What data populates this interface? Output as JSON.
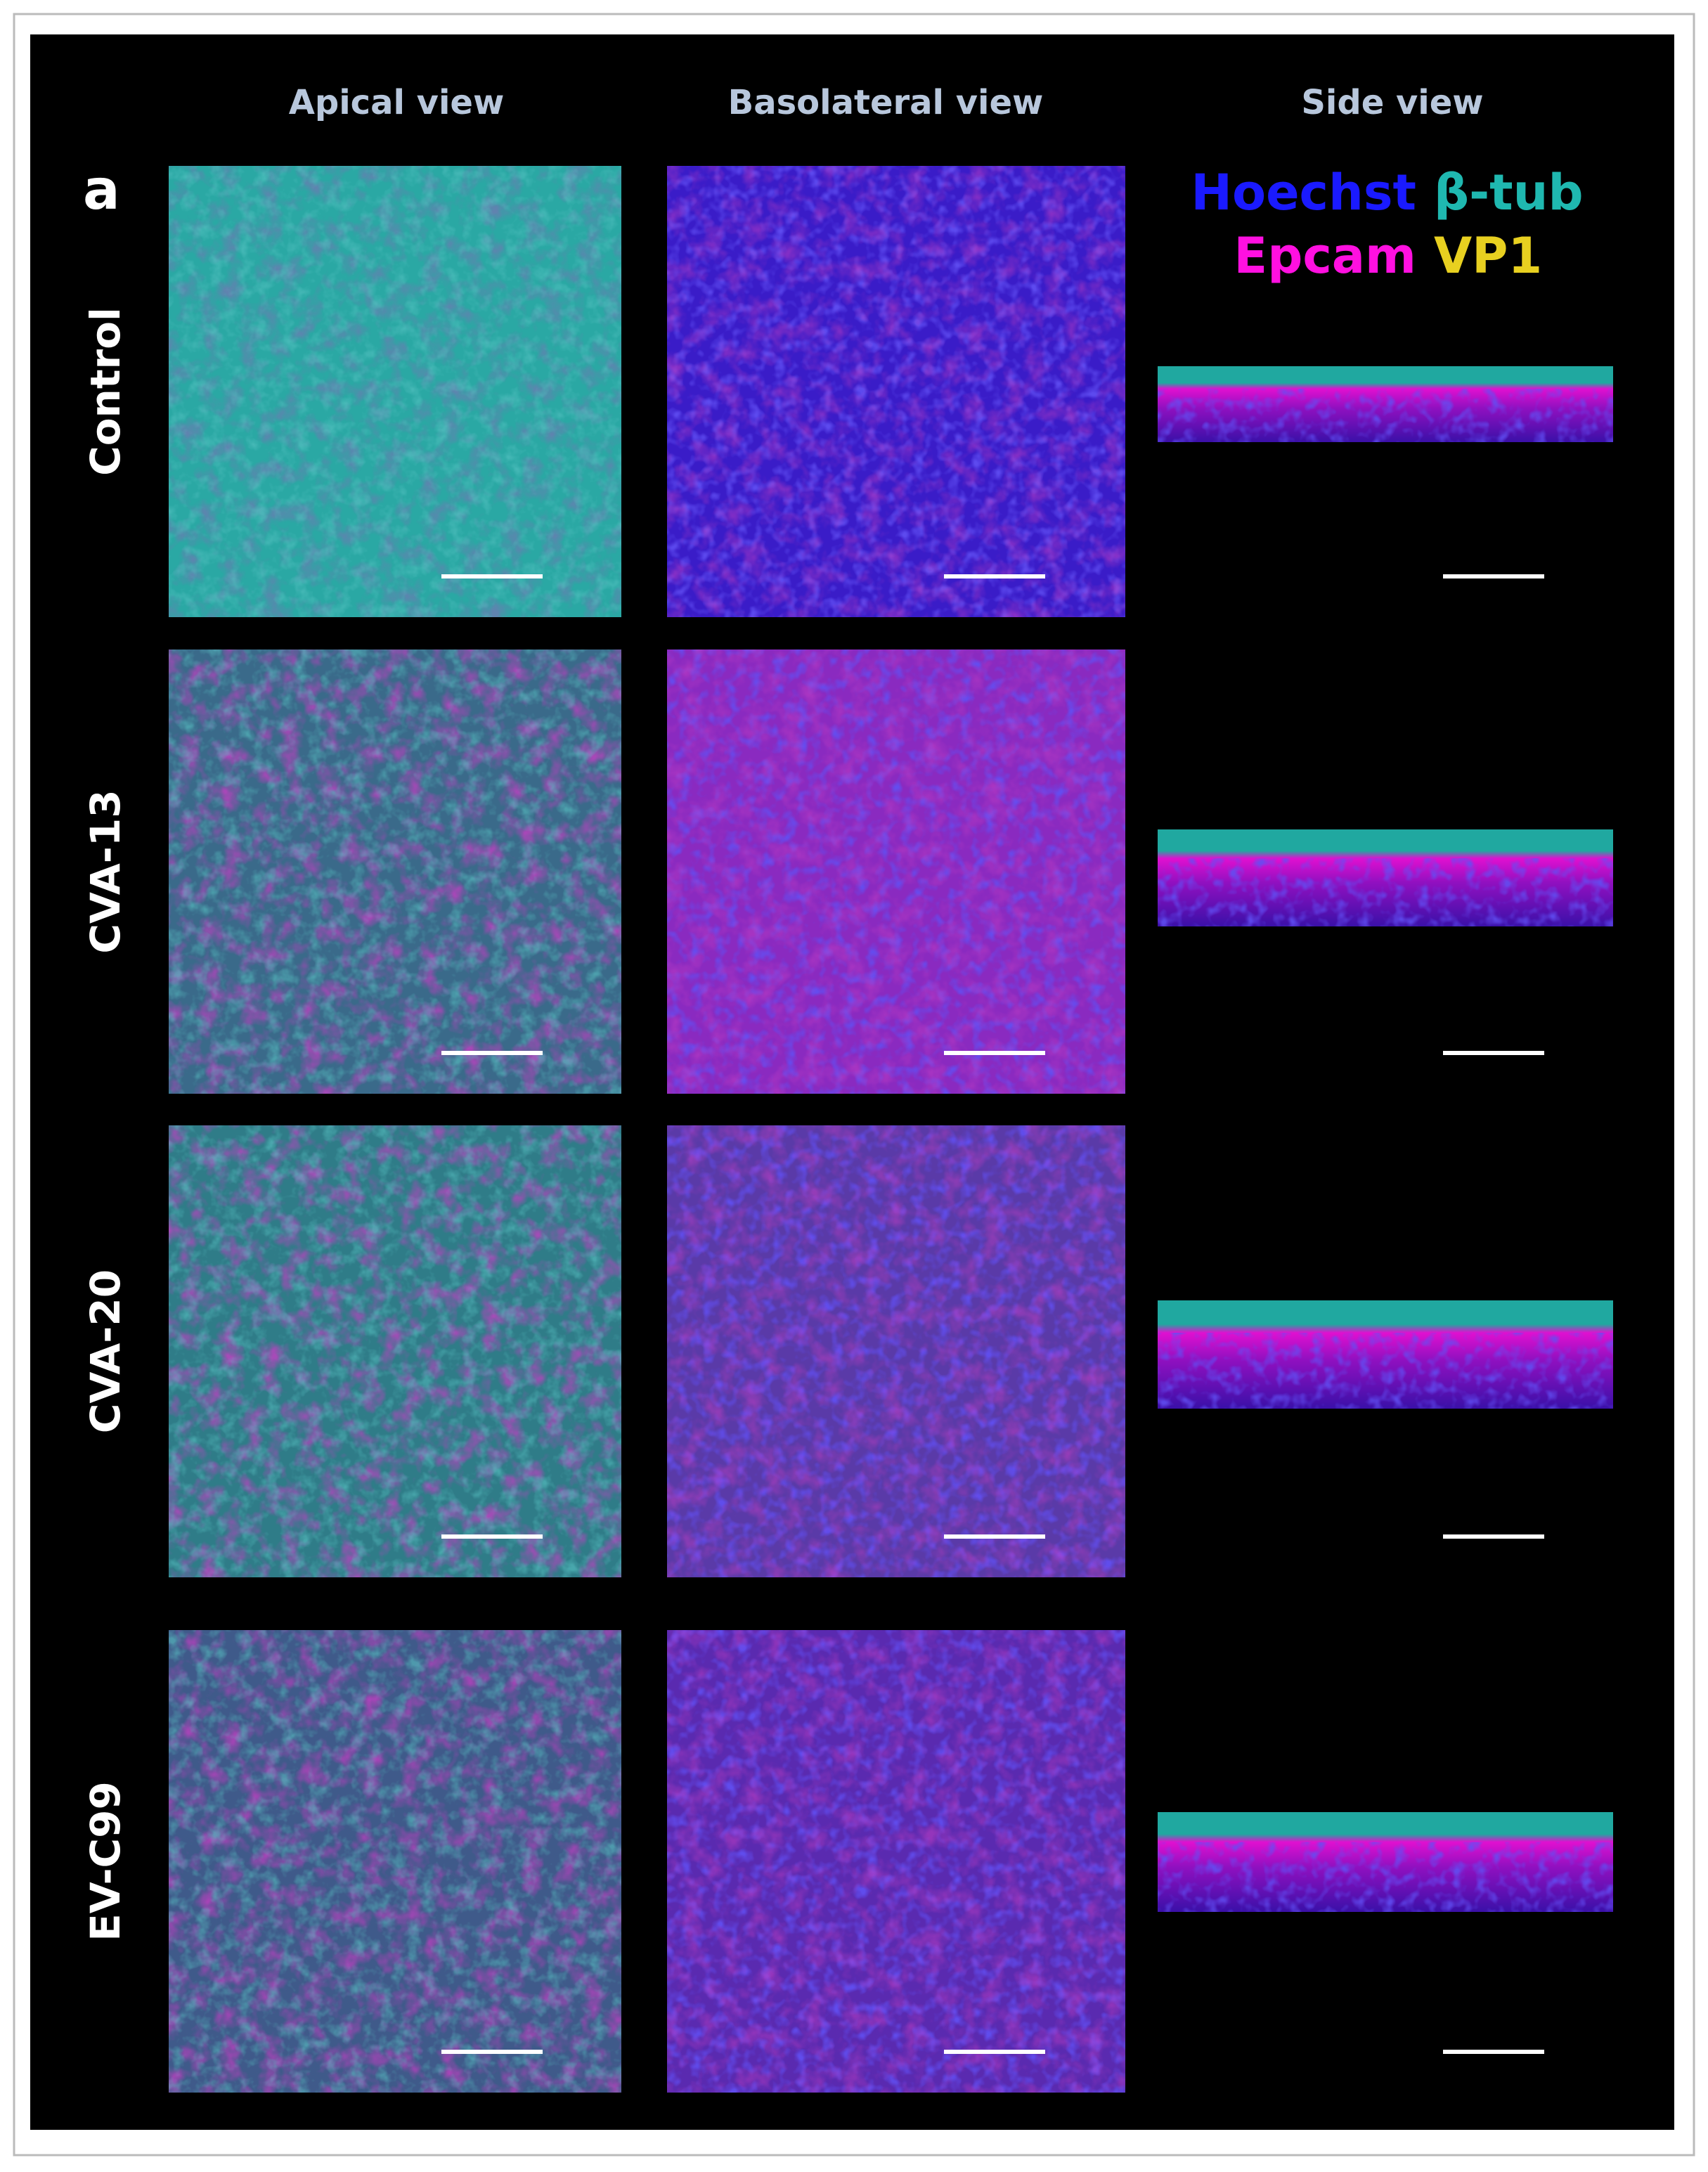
{
  "panel_label": "a",
  "column_headers": [
    "Apical view",
    "Basolateral view",
    "Side view"
  ],
  "row_labels": [
    "Control",
    "CVA-13",
    "CVA-20",
    "EV-C99"
  ],
  "legend": [
    {
      "text": "Hoechst",
      "color": "#1a1aff"
    },
    {
      "text": "β-tub",
      "color": "#1fb8b0"
    },
    {
      "text": "Epcam",
      "color": "#ff10e0"
    },
    {
      "text": "VP1",
      "color": "#e8d020"
    }
  ]
}
